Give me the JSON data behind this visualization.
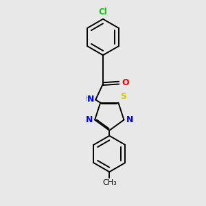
{
  "bg_color": "#e8e8e8",
  "bond_color": "#000000",
  "cl_color": "#00cc00",
  "o_color": "#ff0000",
  "n_color": "#0000ff",
  "s_color": "#cccc00",
  "h_color": "#70b0b0",
  "line_width": 1.4,
  "figsize": [
    3.0,
    3.0
  ],
  "dpi": 100,
  "xlim": [
    -2.5,
    2.5
  ],
  "ylim": [
    -4.8,
    4.8
  ]
}
